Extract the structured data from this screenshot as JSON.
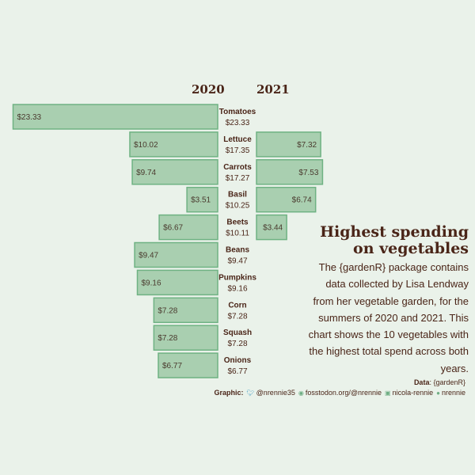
{
  "headers": {
    "y2020": "2020",
    "y2021": "2021"
  },
  "title": "Highest spending on vegetables",
  "description": "The {gardenR} package contains data collected by Lisa Lendway from her vegetable garden, for the summers of 2020 and 2021. This chart shows the 10 vegetables with the highest total spend across both years.",
  "source": {
    "label": "Data",
    "text": ": {gardenR}"
  },
  "credits": {
    "label": "Graphic",
    "twitter": "@nrennie35",
    "mastodon": "fosstodon.org/@nrennie",
    "linkedin": "nicola-rennie",
    "github": "nrennie"
  },
  "colors": {
    "bar_fill": "#a9cfb0",
    "bar_stroke": "#6fb283",
    "text": "#4a2518",
    "background": "#eaf2ea"
  },
  "chart_data": {
    "type": "bar",
    "orientation": "horizontal-diverging",
    "categories": [
      "Tomatoes",
      "Lettuce",
      "Carrots",
      "Basil",
      "Beets",
      "Beans",
      "Pumpkins",
      "Corn",
      "Squash",
      "Onions"
    ],
    "series": [
      {
        "name": "2020",
        "values": [
          23.33,
          10.02,
          9.74,
          3.51,
          6.67,
          9.47,
          9.16,
          7.28,
          7.28,
          6.77
        ],
        "labels": [
          "$23.33",
          "$10.02",
          "$9.74",
          "$3.51",
          "$6.67",
          "$9.47",
          "$9.16",
          "$7.28",
          "$7.28",
          "$6.77"
        ]
      },
      {
        "name": "2021",
        "values": [
          0,
          7.32,
          7.53,
          6.74,
          3.44,
          0,
          0,
          0,
          0,
          0
        ],
        "labels": [
          "",
          "$7.32",
          "$7.53",
          "$6.74",
          "$3.44",
          "",
          "",
          "",
          "",
          ""
        ]
      }
    ],
    "totals": [
      "$23.33",
      "$17.35",
      "$17.27",
      "$10.25",
      "$10.11",
      "$9.47",
      "$9.16",
      "$7.28",
      "$7.28",
      "$6.77"
    ]
  }
}
